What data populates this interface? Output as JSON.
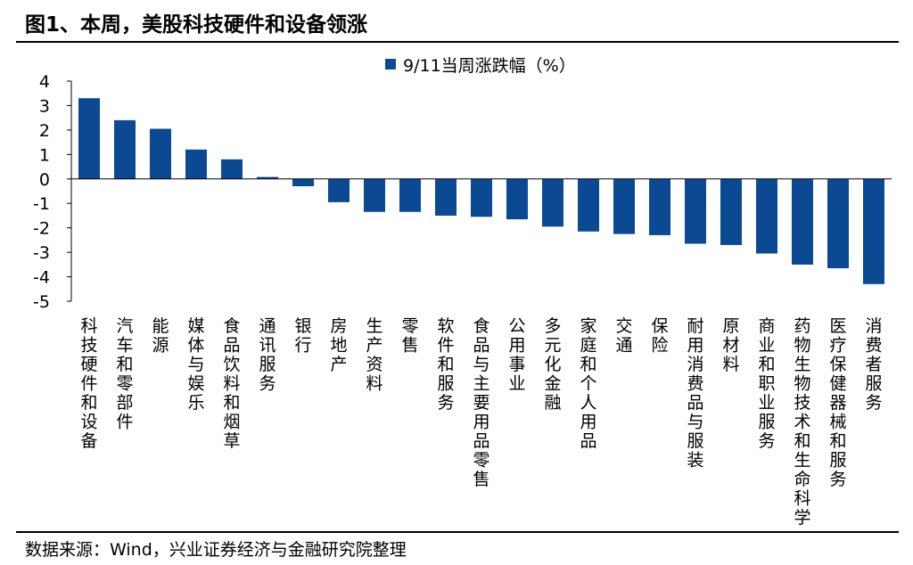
{
  "figure": {
    "title": "图1、本周，美股科技硬件和设备领涨",
    "source": "数据来源：Wind，兴业证券经济与金融研究院整理"
  },
  "chart_data": {
    "type": "bar",
    "categories": [
      "科技硬件和设备",
      "汽车和零部件",
      "能源",
      "媒体与娱乐",
      "食品饮料和烟草",
      "通讯服务",
      "银行",
      "房地产",
      "生产资料",
      "零售",
      "软件和服务",
      "食品与主要用品零售",
      "公用事业",
      "多元化金融",
      "家庭和个人用品",
      "交通",
      "保险",
      "耐用消费品与服装",
      "原材料",
      "商业和职业服务",
      "药物生物技术和生命科学",
      "医疗保健器械和服务",
      "消费者服务"
    ],
    "series": [
      {
        "name": "9/11当周涨跌幅（%）",
        "values": [
          3.3,
          2.4,
          2.05,
          1.2,
          0.8,
          0.08,
          -0.3,
          -0.95,
          -1.35,
          -1.35,
          -1.5,
          -1.55,
          -1.65,
          -1.95,
          -2.15,
          -2.25,
          -2.3,
          -2.65,
          -2.7,
          -3.05,
          -3.5,
          -3.65,
          -4.3
        ]
      }
    ],
    "ylim": [
      -5,
      4
    ],
    "yticks": [
      4,
      3,
      2,
      1,
      0,
      -1,
      -2,
      -3,
      -4,
      -5
    ],
    "legend_position": "top",
    "grid": false,
    "bar_color": "#0b4a93"
  }
}
